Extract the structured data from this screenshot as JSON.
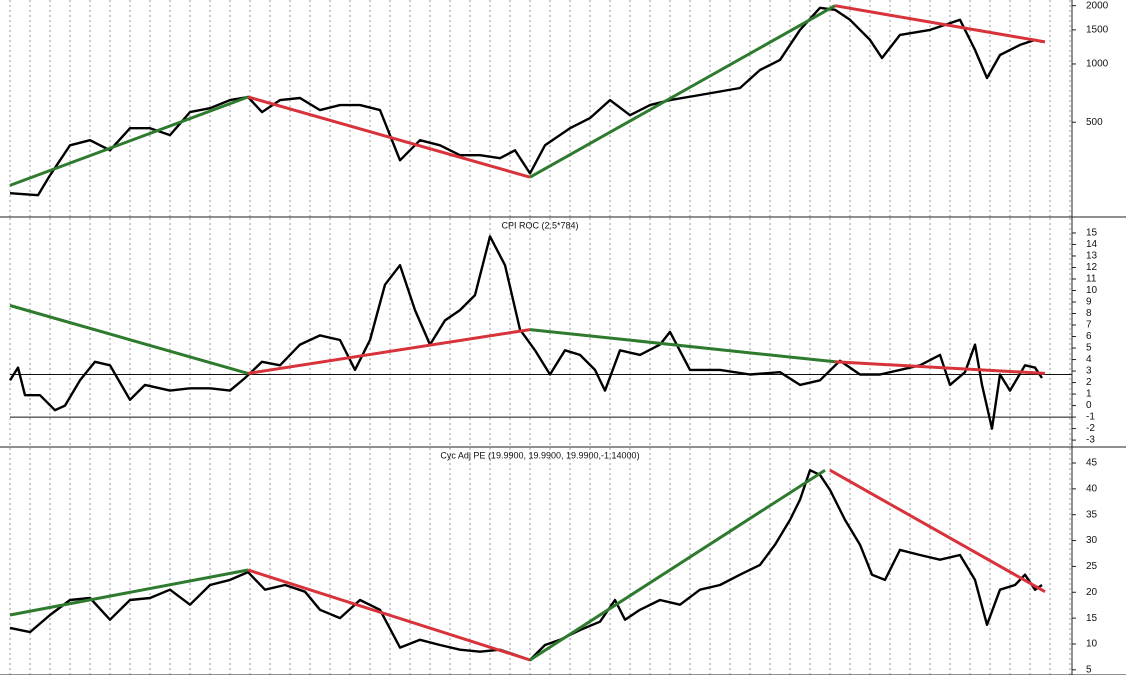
{
  "chart_data": [
    {
      "type": "line",
      "log_scale": true,
      "grid": true,
      "xlim": [
        0,
        106
      ],
      "xticks": [
        0,
        2,
        4,
        6,
        8,
        10,
        12,
        14,
        16,
        18,
        20,
        22,
        24,
        26,
        28,
        30,
        32,
        34,
        36,
        38,
        40,
        42,
        44,
        46,
        48,
        50,
        52,
        54,
        56,
        58,
        60,
        62,
        64,
        66,
        68,
        70,
        72,
        74,
        76,
        78,
        80,
        82,
        84,
        86,
        88,
        90,
        92,
        94,
        96,
        98,
        100,
        102,
        104,
        106
      ],
      "ylim": [
        162,
        2140
      ],
      "yticks": [
        500,
        1000,
        1500,
        2000
      ],
      "series": [
        {
          "color": "#000000",
          "x": [
            0,
            2.8,
            4,
            6,
            8,
            10,
            12,
            14,
            16,
            18,
            20,
            22,
            23.8,
            25.2,
            27,
            29,
            31,
            33,
            35,
            37,
            39,
            41,
            43,
            45,
            47,
            49,
            50.5,
            52,
            53.5,
            56,
            58,
            60,
            62,
            64,
            66,
            69,
            73,
            75,
            77,
            79,
            81,
            82.5,
            84,
            86,
            87.2,
            89,
            92,
            93.5,
            95,
            96.5,
            97.7,
            99,
            101,
            102.5,
            103.2
          ],
          "values": [
            215,
            210,
            266,
            380,
            404,
            358,
            466,
            466,
            429,
            564,
            591,
            651,
            675,
            564,
            651,
            667,
            578,
            613,
            613,
            578,
            318,
            404,
            380,
            338,
            338,
            326,
            358,
            272,
            380,
            466,
            525,
            651,
            544,
            613,
            651,
            691,
            751,
            931,
            1049,
            1500,
            1950,
            1905,
            1690,
            1331,
            1074,
            1413,
            1500,
            1592,
            1690,
            1182,
            846,
            1113,
            1254,
            1331,
            1300
          ]
        },
        {
          "color": "#2e7a2e",
          "x": [
            0,
            23.8
          ],
          "values": [
            236,
            675
          ]
        },
        {
          "color": "#d8323a",
          "x": [
            23.8,
            52
          ],
          "values": [
            675,
            260
          ]
        },
        {
          "color": "#2e7a2e",
          "x": [
            52,
            82.5
          ],
          "values": [
            260,
            2000
          ]
        },
        {
          "color": "#d8323a",
          "x": [
            82.5,
            103.5
          ],
          "values": [
            2000,
            1300
          ]
        }
      ]
    },
    {
      "type": "line",
      "title": "CPI ROC (2.5*784)",
      "grid": true,
      "xlim": [
        0,
        106
      ],
      "xticks": [
        0,
        2,
        4,
        6,
        8,
        10,
        12,
        14,
        16,
        18,
        20,
        22,
        24,
        26,
        28,
        30,
        32,
        34,
        36,
        38,
        40,
        42,
        44,
        46,
        48,
        50,
        52,
        54,
        56,
        58,
        60,
        62,
        64,
        66,
        68,
        70,
        72,
        74,
        76,
        78,
        80,
        82,
        84,
        86,
        88,
        90,
        92,
        94,
        96,
        98,
        100,
        102,
        104,
        106
      ],
      "ylim": [
        -3.6,
        16.3
      ],
      "yticks": [
        15,
        14,
        13,
        12,
        11,
        10,
        9,
        8,
        7,
        6,
        5,
        4,
        3,
        2,
        1,
        0,
        -1,
        -2,
        -3
      ],
      "reference_lines": [
        2.7,
        -1
      ],
      "series": [
        {
          "color": "#000000",
          "x": [
            0,
            0.8,
            1.5,
            3,
            4.5,
            5.5,
            7,
            8.5,
            10,
            12,
            13.5,
            16,
            18,
            20,
            22,
            23.5,
            25.2,
            27,
            29,
            31,
            33,
            34.5,
            36,
            37.5,
            39,
            40.5,
            42,
            43.5,
            45,
            46.5,
            48,
            49.5,
            51,
            52.5,
            54,
            55.5,
            57,
            58.5,
            59.5,
            61,
            63,
            65,
            66,
            68,
            71,
            74,
            77,
            79,
            81,
            83,
            85,
            87,
            89,
            91,
            93,
            94,
            95.5,
            96.5,
            97.2,
            98.2,
            99,
            100,
            101.5,
            102.5,
            103.2
          ],
          "values": [
            2.2,
            3.3,
            0.9,
            0.9,
            -0.4,
            0.0,
            2.2,
            3.8,
            3.5,
            0.5,
            1.8,
            1.3,
            1.5,
            1.5,
            1.3,
            2.4,
            3.8,
            3.5,
            5.3,
            6.1,
            5.7,
            3.1,
            5.7,
            10.5,
            12.2,
            8.3,
            5.3,
            7.4,
            8.3,
            9.6,
            14.7,
            12.2,
            6.6,
            4.8,
            2.7,
            4.8,
            4.4,
            3.1,
            1.3,
            4.8,
            4.4,
            5.3,
            6.4,
            3.1,
            3.1,
            2.7,
            2.9,
            1.8,
            2.2,
            3.9,
            2.7,
            2.7,
            3.1,
            3.5,
            4.4,
            1.8,
            2.9,
            5.3,
            1.8,
            -2.0,
            2.7,
            1.3,
            3.5,
            3.3,
            2.4
          ]
        },
        {
          "color": "#2e7a2e",
          "x": [
            0,
            23.8
          ],
          "values": [
            8.7,
            2.8
          ]
        },
        {
          "color": "#d8323a",
          "x": [
            23.8,
            52
          ],
          "values": [
            2.8,
            6.6
          ]
        },
        {
          "color": "#2e7a2e",
          "x": [
            52,
            82.5
          ],
          "values": [
            6.6,
            3.8
          ]
        },
        {
          "color": "#d8323a",
          "x": [
            82.5,
            103.5
          ],
          "values": [
            3.8,
            2.8
          ]
        }
      ]
    },
    {
      "type": "line",
      "title": "Cyc Adj PE (19.9900, 19.9900, 19.9900,-1.14000)",
      "grid": true,
      "xlim": [
        0,
        106
      ],
      "xticks": [
        0,
        2,
        4,
        6,
        8,
        10,
        12,
        14,
        16,
        18,
        20,
        22,
        24,
        26,
        28,
        30,
        32,
        34,
        36,
        38,
        40,
        42,
        44,
        46,
        48,
        50,
        52,
        54,
        56,
        58,
        60,
        62,
        64,
        66,
        68,
        70,
        72,
        74,
        76,
        78,
        80,
        82,
        84,
        86,
        88,
        90,
        92,
        94,
        96,
        98,
        100,
        102,
        104,
        106
      ],
      "ylim": [
        4.0,
        47.9
      ],
      "yticks": [
        5,
        10,
        15,
        20,
        25,
        30,
        35,
        40,
        45
      ],
      "series": [
        {
          "color": "#000000",
          "x": [
            0,
            2,
            4,
            6,
            8,
            10,
            12,
            14,
            16,
            18,
            20,
            22,
            23.8,
            25.5,
            27.5,
            29.5,
            31,
            33,
            35,
            37,
            39,
            41,
            43,
            45,
            47,
            49,
            50.5,
            52,
            53.5,
            55,
            57,
            59,
            60.5,
            61.5,
            63,
            65,
            67,
            69,
            71,
            73,
            75,
            76.5,
            78,
            79,
            80,
            81,
            82,
            83.5,
            85,
            86.2,
            87.5,
            89,
            91,
            93,
            95,
            96.5,
            97.7,
            99,
            100.5,
            101.5,
            102.5,
            103.2
          ],
          "values": [
            13.1,
            12.3,
            15.6,
            18.5,
            18.9,
            14.7,
            18.5,
            18.9,
            20.5,
            17.6,
            21.4,
            22.4,
            23.9,
            20.5,
            21.4,
            20.1,
            16.6,
            15.0,
            18.5,
            16.6,
            9.3,
            10.8,
            9.8,
            8.9,
            8.5,
            8.9,
            7.9,
            6.9,
            9.8,
            10.8,
            12.7,
            14.3,
            18.5,
            14.7,
            16.6,
            18.5,
            17.6,
            20.5,
            21.4,
            23.4,
            25.3,
            29.2,
            34.0,
            37.9,
            43.6,
            42.7,
            39.8,
            34.0,
            29.2,
            23.4,
            22.4,
            28.2,
            27.2,
            26.3,
            27.2,
            22.4,
            13.7,
            20.5,
            21.4,
            23.4,
            20.5,
            21.4
          ]
        },
        {
          "color": "#2e7a2e",
          "x": [
            0,
            23.8
          ],
          "values": [
            15.6,
            24.3
          ]
        },
        {
          "color": "#d8323a",
          "x": [
            23.8,
            52
          ],
          "values": [
            24.3,
            6.9
          ]
        },
        {
          "color": "#2e7a2e",
          "x": [
            52,
            81.5
          ],
          "values": [
            6.9,
            43.6
          ]
        },
        {
          "color": "#d8323a",
          "x": [
            82,
            103.5
          ],
          "values": [
            43.6,
            20.1
          ]
        }
      ]
    }
  ]
}
